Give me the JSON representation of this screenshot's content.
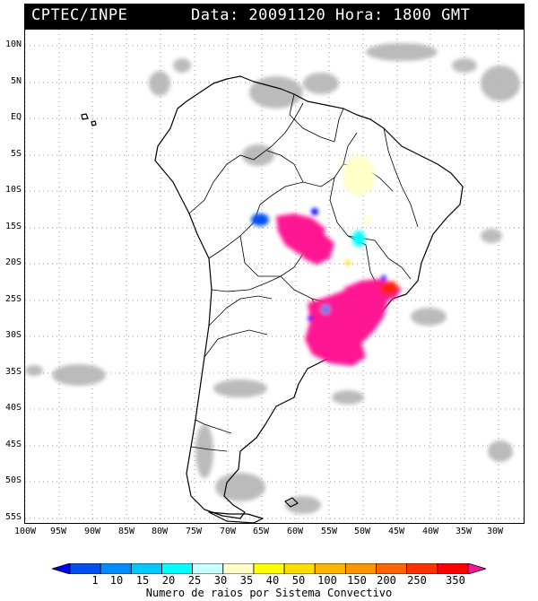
{
  "header": {
    "left": "CPTEC/INPE",
    "right": "Data: 20091120 Hora: 1800 GMT"
  },
  "lat_labels": [
    "10N",
    "5N",
    "EQ",
    "5S",
    "10S",
    "15S",
    "20S",
    "25S",
    "30S",
    "35S",
    "40S",
    "45S",
    "50S",
    "55S"
  ],
  "lon_labels": [
    "100W",
    "95W",
    "90W",
    "85W",
    "80W",
    "75W",
    "70W",
    "65W",
    "60W",
    "55W",
    "50W",
    "45W",
    "40W",
    "35W",
    "30W"
  ],
  "colorbar": {
    "ticks": [
      "1",
      "10",
      "15",
      "20",
      "25",
      "30",
      "35",
      "40",
      "50",
      "100",
      "150",
      "200",
      "250",
      "350"
    ],
    "colors": [
      "#0000ff",
      "#0050f0",
      "#008cff",
      "#00c8ff",
      "#00ffff",
      "#c8ffff",
      "#ffffc8",
      "#ffff00",
      "#ffdc00",
      "#ffb400",
      "#ff9600",
      "#ff6400",
      "#ff3200",
      "#ff0000",
      "#ff1493"
    ],
    "caption": "Numero de raios por Sistema Convectivo"
  },
  "map": {
    "region": "South America",
    "cloud_color": "#b4b4b4",
    "coast_color": "#000000"
  }
}
